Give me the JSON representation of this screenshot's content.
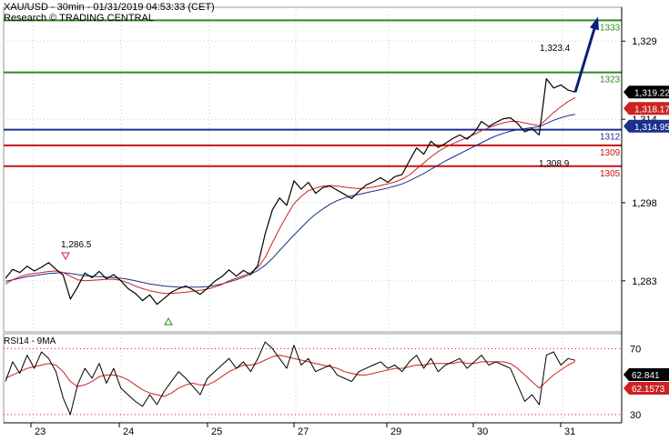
{
  "header": {
    "title": "XAU/USD - 30min - 01/31/2019 04:53:33 (CET)",
    "subtitle": "Research © TRADING CENTRAL"
  },
  "rsi_label": "RSI14 - 9MA",
  "colors": {
    "price": "#000000",
    "ma_fast": "#cc2222",
    "ma_slow": "#1a2f8f",
    "resistance": "#2e8b1e",
    "pivot": "#1a2f8f",
    "support": "#cc1111",
    "arrow": "#0a1f7a",
    "rsi_grid": "#cc1111",
    "last_price_bg": "#000000",
    "ma_fast_bg": "#cc2222",
    "ma_slow_bg": "#1a2f8f",
    "rsi_bg": "#000000",
    "rsi_ma_bg": "#cc2222"
  },
  "chart_data": [
    {
      "type": "line",
      "name": "price",
      "x_ticks": [
        "23",
        "24",
        "25",
        "27",
        "29",
        "30",
        "31"
      ],
      "y_ticks": [
        1329,
        1314,
        1298,
        1283
      ],
      "y_tick_labels": [
        "1,329",
        "1,314",
        "1,298",
        "1,283"
      ],
      "ylim": [
        1273.2,
        1335.5
      ],
      "grid": true,
      "levels": [
        {
          "value": 1333,
          "label": "1333",
          "kind": "resistance"
        },
        {
          "value": 1323,
          "label": "1323",
          "kind": "resistance"
        },
        {
          "value": 1312,
          "label": "1312",
          "kind": "pivot"
        },
        {
          "value": 1309,
          "label": "1309",
          "kind": "support"
        },
        {
          "value": 1305,
          "label": "1305",
          "kind": "support"
        }
      ],
      "annotations": [
        {
          "text": "1,286.5",
          "value": 1286.5
        },
        {
          "text": "1,323.4",
          "value": 1323.4
        },
        {
          "text": "1,308.9",
          "value": 1308.9
        }
      ],
      "price_tags": [
        {
          "text": "1,319.22",
          "value": 1319.22,
          "kind": "last"
        },
        {
          "text": "1,318.17",
          "value": 1318.17,
          "kind": "ma_fast"
        },
        {
          "text": "1,314.95",
          "value": 1314.95,
          "kind": "ma_slow"
        }
      ],
      "price": [
        1283.5,
        1285.2,
        1284.6,
        1285.8,
        1284.9,
        1285.6,
        1286.5,
        1285.2,
        1284.1,
        1279.5,
        1281.8,
        1284.5,
        1283.6,
        1284.8,
        1283.4,
        1284.2,
        1283.0,
        1281.5,
        1280.6,
        1279.2,
        1280.3,
        1278.5,
        1279.6,
        1280.8,
        1281.5,
        1282.0,
        1281.3,
        1280.4,
        1281.6,
        1282.9,
        1283.8,
        1285.1,
        1283.9,
        1285.0,
        1284.2,
        1286.0,
        1292.0,
        1296.6,
        1298.9,
        1297.5,
        1302.2,
        1300.6,
        1301.9,
        1299.8,
        1300.9,
        1301.2,
        1300.4,
        1299.6,
        1298.8,
        1300.2,
        1301.4,
        1302.0,
        1302.8,
        1301.9,
        1303.0,
        1303.4,
        1306.0,
        1308.5,
        1307.3,
        1309.8,
        1308.6,
        1309.4,
        1310.3,
        1311.0,
        1310.2,
        1311.4,
        1313.6,
        1312.6,
        1313.4,
        1314.1,
        1314.3,
        1313.2,
        1311.6,
        1312.2,
        1311.0,
        1321.8,
        1320.0,
        1320.6,
        1319.6,
        1319.22
      ],
      "ma_fast": [
        1282.4,
        1283.2,
        1283.8,
        1284.2,
        1284.4,
        1284.6,
        1284.8,
        1284.9,
        1284.6,
        1283.9,
        1283.2,
        1283.0,
        1283.1,
        1283.2,
        1283.3,
        1283.3,
        1283.1,
        1282.6,
        1282.0,
        1281.5,
        1281.1,
        1280.8,
        1280.6,
        1280.6,
        1280.7,
        1280.8,
        1281.0,
        1281.2,
        1281.4,
        1281.8,
        1282.3,
        1283.0,
        1283.5,
        1284.0,
        1284.6,
        1285.5,
        1287.5,
        1290.3,
        1293.0,
        1295.5,
        1297.8,
        1299.2,
        1300.3,
        1300.8,
        1301.2,
        1301.3,
        1301.2,
        1301.0,
        1300.8,
        1300.7,
        1300.8,
        1301.0,
        1301.3,
        1301.6,
        1302.0,
        1302.5,
        1303.3,
        1304.5,
        1305.6,
        1306.8,
        1307.8,
        1308.6,
        1309.3,
        1309.9,
        1310.5,
        1311.1,
        1311.8,
        1312.4,
        1312.9,
        1313.3,
        1313.6,
        1313.6,
        1313.3,
        1313.0,
        1312.8,
        1314.0,
        1315.3,
        1316.4,
        1317.4,
        1318.17
      ],
      "ma_slow": [
        1282.9,
        1283.2,
        1283.5,
        1283.8,
        1284.0,
        1284.2,
        1284.4,
        1284.5,
        1284.6,
        1284.4,
        1284.2,
        1284.0,
        1283.9,
        1283.8,
        1283.7,
        1283.6,
        1283.5,
        1283.3,
        1283.0,
        1282.7,
        1282.4,
        1282.2,
        1282.0,
        1281.9,
        1281.8,
        1281.8,
        1281.8,
        1281.8,
        1281.9,
        1282.1,
        1282.4,
        1282.8,
        1283.2,
        1283.7,
        1284.3,
        1285.0,
        1286.0,
        1287.3,
        1288.8,
        1290.3,
        1291.8,
        1293.2,
        1294.6,
        1295.8,
        1296.8,
        1297.7,
        1298.4,
        1298.9,
        1299.3,
        1299.6,
        1299.9,
        1300.2,
        1300.5,
        1300.8,
        1301.2,
        1301.6,
        1302.2,
        1302.9,
        1303.6,
        1304.4,
        1305.2,
        1306.0,
        1306.7,
        1307.4,
        1308.1,
        1308.8,
        1309.5,
        1310.2,
        1310.8,
        1311.3,
        1311.7,
        1312.0,
        1312.2,
        1312.4,
        1312.6,
        1313.2,
        1313.8,
        1314.3,
        1314.7,
        1314.95
      ],
      "projection_target": 1333
    },
    {
      "type": "line",
      "name": "RSI14 - 9MA",
      "y_ticks": [
        70,
        30
      ],
      "y_tick_labels": [
        "70",
        "30"
      ],
      "ylim": [
        25,
        79
      ],
      "grid": true,
      "price_tags": [
        {
          "text": "62.841",
          "value": 62.841,
          "kind": "rsi"
        },
        {
          "text": "62.1573",
          "value": 62.1573,
          "kind": "rsi_ma"
        }
      ],
      "rsi": [
        50,
        62,
        55,
        66,
        58,
        68,
        64,
        56,
        40,
        30,
        48,
        58,
        52,
        61,
        49,
        58,
        46,
        42,
        38,
        35,
        42,
        36,
        44,
        50,
        56,
        52,
        47,
        42,
        52,
        56,
        60,
        64,
        58,
        62,
        56,
        64,
        74,
        70,
        64,
        58,
        72,
        60,
        64,
        56,
        58,
        60,
        54,
        52,
        50,
        56,
        58,
        60,
        62,
        58,
        60,
        56,
        62,
        66,
        58,
        64,
        56,
        60,
        62,
        64,
        58,
        62,
        66,
        60,
        62,
        60,
        58,
        48,
        38,
        42,
        36,
        66,
        68,
        60,
        64,
        62.84
      ],
      "rsi_ma": [
        52,
        54,
        56,
        58,
        59,
        60,
        61,
        60,
        56,
        50,
        47,
        48,
        50,
        53,
        54,
        54,
        53,
        51,
        48,
        45,
        43,
        42,
        41,
        43,
        46,
        48,
        49,
        48,
        48,
        50,
        53,
        56,
        58,
        60,
        60,
        61,
        63,
        65,
        66,
        65,
        64,
        63,
        62,
        61,
        60,
        59,
        58,
        56,
        55,
        54,
        54,
        55,
        56,
        57,
        58,
        58,
        59,
        60,
        60,
        61,
        61,
        61,
        61,
        62,
        61,
        61,
        62,
        62,
        62,
        62,
        61,
        58,
        54,
        50,
        46,
        50,
        54,
        57,
        60,
        62.16
      ]
    }
  ]
}
